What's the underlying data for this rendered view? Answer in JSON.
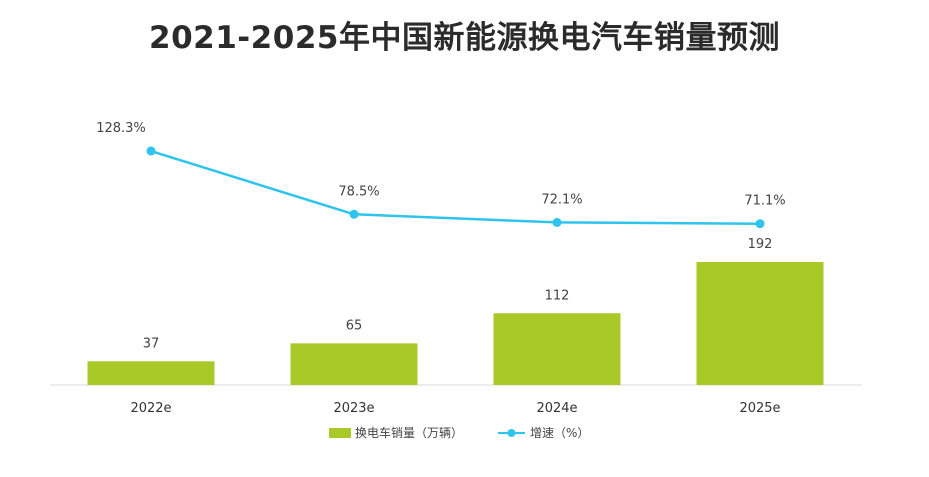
{
  "chart_data": {
    "type": "bar+line",
    "title": "2021-2025年中国新能源换电汽车销量预测",
    "categories": [
      "2022e",
      "2023e",
      "2024e",
      "2025e"
    ],
    "series": [
      {
        "name": "换电车销量（万辆）",
        "type": "bar",
        "color": "#a8c928",
        "values": [
          37,
          65,
          112,
          192
        ]
      },
      {
        "name": "增速（%）",
        "type": "line",
        "color": "#2ec4ee",
        "values": [
          128.3,
          78.5,
          72.1,
          71.1
        ],
        "labels": [
          "128.3%",
          "78.5%",
          "72.1%",
          "71.1%"
        ]
      }
    ],
    "bar_axis_range": [
      0,
      200
    ],
    "line_axis_range": [
      0,
      150
    ],
    "legend": "bottom-center"
  }
}
